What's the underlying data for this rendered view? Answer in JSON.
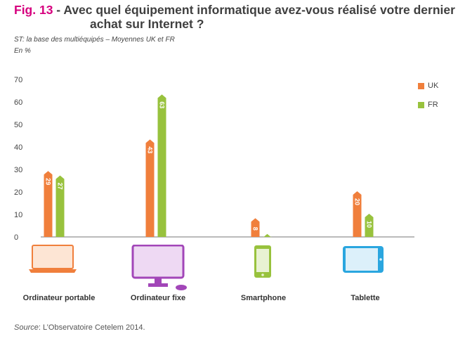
{
  "figure": {
    "fig_label": "Fig. 13",
    "title_line1": " - Avec quel équipement informatique avez-vous réalisé votre dernier",
    "title_line2": "achat sur Internet ?",
    "subtitle": "ST: la base des multiéquipés – Moyennes UK et FR",
    "unit": "En %",
    "source_label": "Source",
    "source_text": ": L’Observatoire Cetelem 2014."
  },
  "colors": {
    "uk": "#f07f3c",
    "fr": "#98c23d",
    "axis": "#777777"
  },
  "chart_data": {
    "type": "bar",
    "title": "Avec quel équipement informatique avez-vous réalisé votre dernier achat sur Internet ?",
    "ylabel": "En %",
    "ylim": [
      0,
      70
    ],
    "yticks": [
      0,
      10,
      20,
      30,
      40,
      50,
      60,
      70
    ],
    "categories": [
      "Ordinateur portable",
      "Ordinateur fixe",
      "Smartphone",
      "Tablette"
    ],
    "series": [
      {
        "name": "UK",
        "values": [
          29,
          43,
          8,
          20
        ]
      },
      {
        "name": "FR",
        "values": [
          27,
          63,
          1,
          10
        ]
      }
    ],
    "legend_position": "top-right"
  },
  "devices": [
    "laptop-icon",
    "desktop-icon",
    "smartphone-icon",
    "tablet-icon"
  ]
}
